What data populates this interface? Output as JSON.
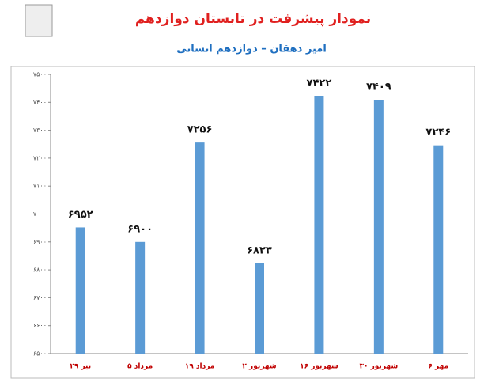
{
  "chart_data": {
    "type": "bar",
    "title": "نمودار پیشرفت در تابستان دوازدهم",
    "subtitle": "امیر دهقان – دوازدهم انسانی",
    "categories": [
      "۲۹ تیر",
      "۵ مرداد",
      "۱۹ مرداد",
      "۲ شهریور",
      "۱۶ شهریور",
      "۳۰ شهریور",
      "۶ مهر"
    ],
    "values": [
      6952,
      6900,
      7256,
      6823,
      7422,
      7409,
      7246
    ],
    "value_labels": [
      "۶۹۵۲",
      "۶۹۰۰",
      "۷۲۵۶",
      "۶۸۲۳",
      "۷۴۲۲",
      "۷۴۰۹",
      "۷۲۴۶"
    ],
    "color": "#5b9bd5",
    "ylim": [
      6500,
      7500
    ],
    "yticks": [
      {
        "value": 6500,
        "label": "۶۵۰۰"
      },
      {
        "value": 6600,
        "label": "۶۶۰۰"
      },
      {
        "value": 6700,
        "label": "۶۷۰۰"
      },
      {
        "value": 6800,
        "label": "۶۸۰۰"
      },
      {
        "value": 6900,
        "label": "۶۹۰۰"
      },
      {
        "value": 7000,
        "label": "۷۰۰۰"
      },
      {
        "value": 7100,
        "label": "۷۱۰۰"
      },
      {
        "value": 7200,
        "label": "۷۲۰۰"
      },
      {
        "value": 7300,
        "label": "۷۳۰۰"
      },
      {
        "value": 7400,
        "label": "۷۴۰۰"
      },
      {
        "value": 7500,
        "label": "۷۵۰۰"
      }
    ],
    "grid": false
  }
}
